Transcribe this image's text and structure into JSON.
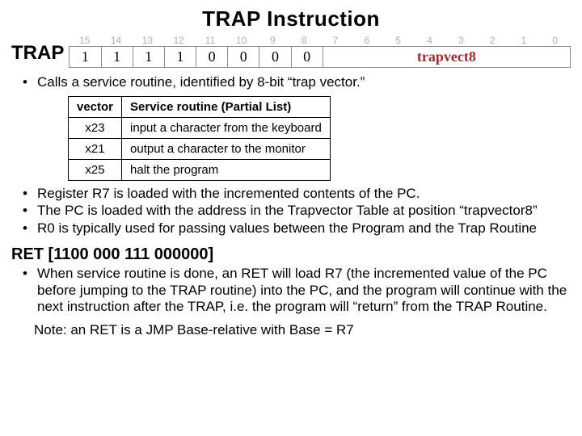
{
  "title": "TRAP Instruction",
  "trap_label": "TRAP",
  "bit_indices": [
    "15",
    "14",
    "13",
    "12",
    "11",
    "10",
    "9",
    "8",
    "7",
    "6",
    "5",
    "4",
    "3",
    "2",
    "1",
    "0"
  ],
  "opcode_bits": [
    "1",
    "1",
    "1",
    "1",
    "0",
    "0",
    "0",
    "0"
  ],
  "vect_label": "trapvect8",
  "bullet1": "Calls a service routine, identified by 8-bit “trap vector.”",
  "table": {
    "head_vec": "vector",
    "head_svc": "Service routine (Partial List)",
    "rows": [
      {
        "vec": "x23",
        "svc": "input a character from the keyboard"
      },
      {
        "vec": "x21",
        "svc": "output a character to the monitor"
      },
      {
        "vec": "x25",
        "svc": "halt the program"
      }
    ]
  },
  "bullet2": "Register R7 is loaded with the incremented contents of the PC.",
  "bullet3": "The PC is loaded with the address in the Trapvector Table at position “trapvector8”",
  "bullet4": "R0 is typically used for passing values between the Program and the Trap Routine",
  "ret_header": "RET [1100 000 111 000000]",
  "ret_bullet": "When service routine is done, an RET will load R7 (the incremented value of the PC before jumping to the TRAP routine) into the  PC, and the program will continue with the next instruction after the TRAP, i.e. the program will “return” from the TRAP Routine.",
  "note": "Note: an RET is a JMP Base-relative with Base = R7"
}
